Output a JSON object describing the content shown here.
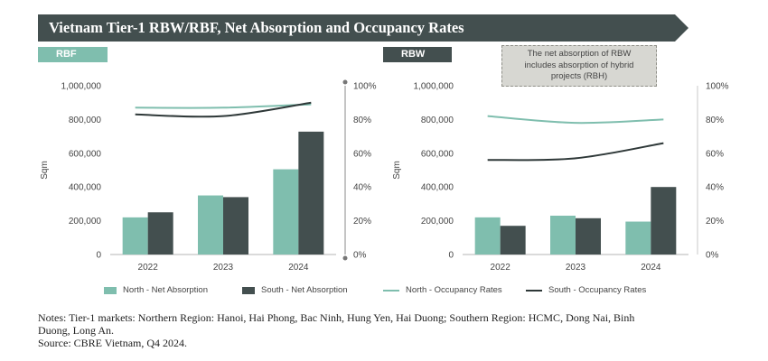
{
  "title": "Vietnam Tier-1 RBW/RBF, Net Absorption and Occupancy Rates",
  "tags": {
    "rbf": "RBF",
    "rbw": "RBW"
  },
  "note_box": {
    "line1": "The net absorption of RBW",
    "line2": "includes absorption of hybrid",
    "line3": "projects (RBH)"
  },
  "colors": {
    "north": "#7fbeae",
    "south": "#434f4f",
    "banner": "#434f4f",
    "axis_grey": "#8a8a8a"
  },
  "legend": {
    "north_bar": "North - Net Absorption",
    "south_bar": "South - Net Absorption",
    "north_line": "North - Occupancy Rates",
    "south_line": "South - Occupancy Rates"
  },
  "notes": {
    "line1": "Notes: Tier-1 markets: Northern Region: Hanoi, Hai Phong, Bac Ninh, Hung Yen, Hai Duong; Southern Region: HCMC, Dong Nai, Binh",
    "line2": "Duong, Long An.",
    "line3": "Source: CBRE Vietnam, Q4 2024."
  },
  "chart_data": [
    {
      "id": "rbf",
      "type": "bar",
      "categories": [
        "2022",
        "2023",
        "2024"
      ],
      "ylabel": "Sqm",
      "ylim": [
        0,
        1000000
      ],
      "yticks": [
        "0",
        "200,000",
        "400,000",
        "600,000",
        "800,000",
        "1,000,000"
      ],
      "y2lim": [
        0,
        100
      ],
      "y2ticks": [
        "0%",
        "20%",
        "40%",
        "60%",
        "80%",
        "100%"
      ],
      "series": [
        {
          "name": "North - Net Absorption",
          "kind": "bar",
          "values": [
            220000,
            350000,
            505000
          ]
        },
        {
          "name": "South - Net Absorption",
          "kind": "bar",
          "values": [
            250000,
            340000,
            728000
          ]
        },
        {
          "name": "North - Occupancy Rates",
          "kind": "line",
          "axis": "right",
          "values": [
            87,
            87,
            89
          ]
        },
        {
          "name": "South - Occupancy Rates",
          "kind": "line",
          "axis": "right",
          "values": [
            83,
            82,
            90
          ]
        }
      ]
    },
    {
      "id": "rbw",
      "type": "bar",
      "categories": [
        "2022",
        "2023",
        "2024"
      ],
      "ylabel": "Sqm",
      "ylim": [
        0,
        1000000
      ],
      "yticks": [
        "0",
        "200,000",
        "400,000",
        "600,000",
        "800,000",
        "1,000,000"
      ],
      "y2lim": [
        0,
        100
      ],
      "y2ticks": [
        "0%",
        "20%",
        "40%",
        "60%",
        "80%",
        "100%"
      ],
      "series": [
        {
          "name": "North - Net Absorption",
          "kind": "bar",
          "values": [
            220000,
            230000,
            195000
          ]
        },
        {
          "name": "South - Net Absorption",
          "kind": "bar",
          "values": [
            170000,
            215000,
            400000
          ]
        },
        {
          "name": "North - Occupancy Rates",
          "kind": "line",
          "axis": "right",
          "values": [
            82,
            78,
            80
          ]
        },
        {
          "name": "South - Occupancy Rates",
          "kind": "line",
          "axis": "right",
          "values": [
            56,
            57,
            66
          ]
        }
      ]
    }
  ]
}
